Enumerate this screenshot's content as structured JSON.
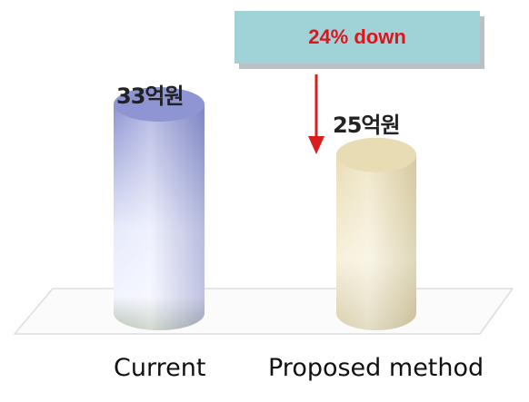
{
  "chart_data": {
    "type": "bar",
    "categories": [
      "Current",
      "Proposed method"
    ],
    "values": [
      33,
      25
    ],
    "value_labels": [
      "33억원",
      "25억원"
    ],
    "ylim": [
      0,
      33
    ],
    "annotation": "24% down",
    "colors": {
      "current": "#9aa0d6",
      "proposed": "#ece2c0",
      "callout_bg": "#9fd3d8",
      "callout_text": "#e1141c",
      "arrow": "#d81e1e"
    }
  }
}
